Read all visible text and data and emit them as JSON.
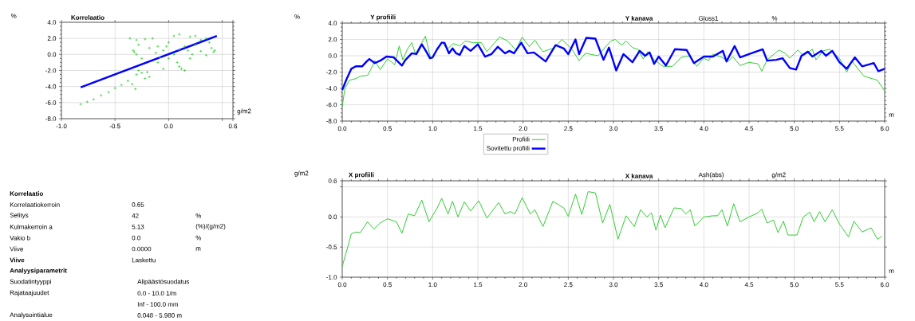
{
  "chart_data": [
    {
      "type": "scatter",
      "title": "Korrelaatio",
      "xlabel": "g/m2",
      "ylabel": "%",
      "grid": true,
      "xlim": [
        -1.0,
        0.6
      ],
      "ylim": [
        -8,
        4
      ],
      "xticks": [
        {
          "value": -1,
          "label": "-1.0"
        },
        -0.5,
        {
          "value": 0,
          "label": "0.0"
        },
        {
          "value": 0.5,
          "label": null
        },
        0.6
      ],
      "yticks": [
        {
          "value": -8,
          "label": "-8.0"
        },
        {
          "value": -6,
          "label": "-6.0"
        },
        {
          "value": -4,
          "label": "-4.0"
        },
        {
          "value": -2,
          "label": "-2.0"
        },
        {
          "value": 0,
          "label": "0.0"
        },
        {
          "value": 2,
          "label": "2.0"
        },
        {
          "value": 4,
          "label": "4.0"
        }
      ],
      "series": [
        {
          "type": "scatter",
          "marker": "cross",
          "color": "#33cc33",
          "x": [
            -0.82,
            -0.76,
            -0.7,
            -0.63,
            -0.56,
            -0.5,
            -0.44,
            -0.38,
            -0.31,
            -0.34,
            -0.3,
            -0.25,
            -0.22,
            -0.18,
            -0.28,
            -0.2,
            -0.36,
            -0.3,
            -0.22,
            -0.15,
            -0.33,
            -0.3,
            -0.32,
            -0.25,
            -0.28,
            0.4,
            0.42,
            0.43,
            0.38,
            0.35,
            0.3,
            0.25,
            0.2,
            0.1,
            0.05,
            0.15,
            0.1,
            0.15,
            0.0,
            -0.05,
            -0.1,
            0.0,
            0.05,
            0.2,
            -0.1,
            -0.05,
            0.08,
            0.12,
            -0.12,
            -0.18,
            0.25,
            0.3,
            0.35,
            -0.08,
            0.18,
            -0.02,
            0.1,
            0.22
          ],
          "values": [
            -6.2,
            -5.9,
            -5.6,
            -5.1,
            -4.7,
            -4.2,
            -3.8,
            -3.3,
            -4.3,
            -3.7,
            -2.5,
            -2.3,
            -3.0,
            -2.8,
            -2.0,
            -2.2,
            2.0,
            1.8,
            1.9,
            2.0,
            0.5,
            0.0,
            0.3,
            -0.5,
            1.2,
            0.8,
            0.3,
            0.5,
            1.5,
            -0.1,
            0.4,
            2.3,
            2.2,
            2.5,
            2.3,
            1.0,
            -1.5,
            -2.0,
            -0.5,
            0.5,
            1.0,
            1.5,
            0.0,
            -0.5,
            -1.0,
            -1.8,
            -1.0,
            -1.8,
            0.2,
            0.8,
            1.2,
            1.8,
            2.0,
            -0.4,
            0.5,
            1.0,
            0.6,
            0.0
          ]
        },
        {
          "type": "line",
          "color": "#0000ff",
          "x": [
            -0.82,
            0.45
          ],
          "values": [
            -4.1,
            2.3
          ]
        }
      ]
    },
    {
      "type": "line",
      "title": "Y profiili",
      "xlabel": "m",
      "ylabel": "%",
      "grid": true,
      "legend": "bottom",
      "annotations": [
        "Y kanava",
        "Gloss1",
        "%"
      ],
      "xlim": [
        0,
        6
      ],
      "ylim": [
        -8,
        4
      ],
      "xticks": [
        {
          "value": 0,
          "label": "0.0"
        },
        0.5,
        {
          "value": 1,
          "label": "1.0"
        },
        1.5,
        {
          "value": 2,
          "label": "2.0"
        },
        2.5,
        {
          "value": 3,
          "label": "3.0"
        },
        3.5,
        {
          "value": 4,
          "label": "4.0"
        },
        4.5,
        {
          "value": 5,
          "label": "5.0"
        },
        5.5,
        {
          "value": 6,
          "label": "6.0"
        }
      ],
      "yticks": [
        {
          "value": -8,
          "label": "-8.0"
        },
        {
          "value": -6,
          "label": "-6.0"
        },
        {
          "value": -4,
          "label": "-4.0"
        },
        {
          "value": -2,
          "label": "-2.0"
        },
        {
          "value": 0,
          "label": "0.0"
        },
        {
          "value": 2,
          "label": "2.0"
        },
        {
          "value": 4,
          "label": "4.0"
        }
      ],
      "series": [
        {
          "name": "Profiili",
          "color": "#33cc33",
          "x": [
            0,
            0.03,
            0.08,
            0.15,
            0.2,
            0.28,
            0.32,
            0.36,
            0.42,
            0.5,
            0.55,
            0.58,
            0.63,
            0.67,
            0.72,
            0.77,
            0.81,
            0.85,
            0.92,
            0.98,
            1.04,
            1.1,
            1.16,
            1.23,
            1.3,
            1.36,
            1.45,
            1.54,
            1.6,
            1.74,
            1.83,
            1.92,
            1.99,
            2.07,
            2.13,
            2.22,
            2.35,
            2.43,
            2.54,
            2.62,
            2.69,
            2.83,
            2.92,
            2.97,
            3.02,
            3.09,
            3.14,
            3.21,
            3.27,
            3.33,
            3.38,
            3.45,
            3.55,
            3.65,
            3.75,
            3.85,
            3.92,
            4.0,
            4.05,
            4.1,
            4.2,
            4.27,
            4.32,
            4.4,
            4.5,
            4.6,
            4.64,
            4.7,
            4.83,
            4.9,
            4.95,
            5.04,
            5.1,
            5.2,
            5.24,
            5.32,
            5.39,
            5.5,
            5.58,
            5.64,
            5.77,
            5.92,
            6.0
          ],
          "values": [
            -6.2,
            -4.0,
            -3.0,
            -2.8,
            -2.5,
            -2.4,
            -1.6,
            -0.6,
            -1.7,
            -0.4,
            -0.8,
            -1.1,
            1.2,
            -0.5,
            0.8,
            1.6,
            0.2,
            null,
            2.4,
            -0.4,
            null,
            1.7,
            0.8,
            1.5,
            1.2,
            1.8,
            1.6,
            1.6,
            0.5,
            2.3,
            1.8,
            0.7,
            2.3,
            1.1,
            1.9,
            0.5,
            1.0,
            2.0,
            0.8,
            -0.6,
            0.3,
            0.0,
            1.2,
            1.8,
            2.0,
            1.3,
            1.8,
            1.0,
            0.8,
            -0.4,
            0.5,
            -0.5,
            -1.3,
            -1.3,
            -0.2,
            0.0,
            -1.3,
            -0.3,
            -0.6,
            0.2,
            -0.2,
            -0.7,
            -0.1,
            -1.2,
            -0.8,
            -1.0,
            -1.9,
            -0.5,
            0.7,
            0.3,
            -0.3,
            0.7,
            0.0,
            0.8,
            -0.5,
            0.6,
            0.8,
            -0.3,
            -2.0,
            -0.7,
            -2.5,
            -3.0,
            -4.3
          ]
        },
        {
          "name": "Sovitettu profiili",
          "color": "#0000ff",
          "x": [
            0,
            0.05,
            0.1,
            0.15,
            0.22,
            0.27,
            0.3,
            0.36,
            0.42,
            0.49,
            0.57,
            0.66,
            0.7,
            0.77,
            0.82,
            0.88,
            0.93,
            0.97,
            1.0,
            1.05,
            1.1,
            1.13,
            1.18,
            1.22,
            1.26,
            1.3,
            1.35,
            1.42,
            1.5,
            1.58,
            1.65,
            1.72,
            1.8,
            1.85,
            1.9,
            1.98,
            2.05,
            2.12,
            2.25,
            2.36,
            2.45,
            2.5,
            2.58,
            2.62,
            2.7,
            2.8,
            2.89,
            2.95,
            3.03,
            3.11,
            3.21,
            3.29,
            3.35,
            3.4,
            3.45,
            3.5,
            3.58,
            3.68,
            3.81,
            3.89,
            4.0,
            4.1,
            4.21,
            4.25,
            4.34,
            4.4,
            4.5,
            4.65,
            4.7,
            4.8,
            4.87,
            4.95,
            5.02,
            5.08,
            5.15,
            5.2,
            5.3,
            5.35,
            5.42,
            5.5,
            5.58,
            5.67,
            5.75,
            5.88,
            5.93,
            6.0
          ],
          "values": [
            -4.2,
            -2.8,
            -1.6,
            -1.3,
            -1.3,
            -0.7,
            -0.4,
            -0.9,
            -0.6,
            -0.1,
            -0.2,
            -1.2,
            -0.5,
            0.3,
            0.2,
            1.4,
            0.5,
            -0.3,
            -0.2,
            0.8,
            1.6,
            1.6,
            0.3,
            0.9,
            0.3,
            0.1,
            1.2,
            0.6,
            1.4,
            -0.1,
            0.2,
            1.1,
            0.3,
            0.6,
            0.3,
            1.6,
            0.3,
            0.4,
            -0.7,
            1.3,
            0.9,
            0.2,
            2.0,
            0.2,
            2.2,
            2.1,
            -0.5,
            1.0,
            -1.8,
            0.2,
            -0.8,
            0.6,
            0.0,
            0.4,
            -1.0,
            -0.1,
            -1.2,
            0.8,
            0.7,
            -0.9,
            -0.1,
            -0.1,
            0.6,
            -0.7,
            1.2,
            -0.2,
            0.2,
            0.8,
            -0.6,
            -0.5,
            -0.3,
            -1.5,
            -1.7,
            0.0,
            0.5,
            -0.1,
            0.6,
            0.0,
            0.6,
            -0.8,
            -1.6,
            -0.2,
            -1.3,
            -0.9,
            -1.9,
            -1.6
          ]
        }
      ]
    },
    {
      "type": "line",
      "title": "X profiili",
      "xlabel": "m",
      "ylabel": "g/m2",
      "grid": true,
      "annotations": [
        "X kanava",
        "Ash(abs)",
        "g/m2"
      ],
      "xlim": [
        0,
        6
      ],
      "ylim": [
        -1.0,
        0.6
      ],
      "xticks": [
        {
          "value": 0,
          "label": "0.0"
        },
        0.5,
        {
          "value": 1,
          "label": "1.0"
        },
        1.5,
        {
          "value": 2,
          "label": "2.0"
        },
        2.5,
        {
          "value": 3,
          "label": "3.0"
        },
        3.5,
        {
          "value": 4,
          "label": "4.0"
        },
        4.5,
        {
          "value": 5,
          "label": "5.0"
        },
        5.5,
        {
          "value": 6,
          "label": "6.0"
        }
      ],
      "yticks": [
        {
          "value": -1,
          "label": "-1.0"
        },
        -0.5,
        {
          "value": 0,
          "label": "0.0"
        },
        {
          "value": 0.5,
          "label": null
        },
        0.6
      ],
      "series": [
        {
          "color": "#33cc33",
          "x": [
            0,
            0.07,
            0.1,
            0.15,
            0.2,
            0.28,
            0.35,
            0.42,
            0.5,
            0.6,
            0.66,
            0.73,
            0.8,
            0.88,
            0.96,
            1.05,
            1.1,
            1.17,
            1.22,
            1.28,
            1.35,
            1.42,
            1.51,
            1.6,
            1.73,
            1.8,
            1.86,
            1.91,
            1.99,
            2.08,
            2.13,
            2.22,
            2.33,
            2.45,
            2.5,
            2.58,
            2.65,
            2.72,
            2.8,
            2.88,
            2.96,
            3.05,
            3.14,
            3.23,
            3.3,
            3.37,
            3.42,
            3.47,
            3.52,
            3.57,
            3.67,
            3.75,
            3.8,
            3.85,
            3.9,
            4.0,
            4.1,
            4.15,
            4.2,
            4.26,
            4.33,
            4.4,
            4.5,
            4.6,
            4.64,
            4.7,
            4.77,
            4.82,
            4.88,
            4.93,
            5.03,
            5.1,
            5.17,
            5.22,
            5.28,
            5.34,
            5.42,
            5.5,
            5.6,
            5.66,
            5.75,
            5.85,
            5.92,
            5.97
          ],
          "values": [
            -0.82,
            -0.45,
            -0.28,
            -0.25,
            -0.26,
            -0.08,
            -0.2,
            -0.1,
            -0.03,
            -0.08,
            -0.27,
            0.05,
            0.02,
            0.28,
            -0.08,
            0.15,
            0.31,
            0.05,
            0.26,
            0.0,
            0.25,
            0.1,
            0.27,
            -0.02,
            0.24,
            0.05,
            0.09,
            0.05,
            0.32,
            0.05,
            0.12,
            -0.16,
            0.26,
            0.15,
            0.01,
            0.38,
            0.04,
            0.42,
            0.4,
            -0.1,
            0.21,
            -0.37,
            0.02,
            -0.16,
            0.12,
            0.0,
            0.07,
            -0.22,
            0.03,
            -0.18,
            0.15,
            0.14,
            0.05,
            0.12,
            -0.15,
            0.0,
            0.02,
            0.02,
            0.12,
            -0.15,
            0.22,
            -0.08,
            0.0,
            0.07,
            0.13,
            -0.1,
            -0.05,
            -0.26,
            -0.07,
            -0.3,
            -0.3,
            0.0,
            0.08,
            -0.08,
            0.09,
            -0.08,
            0.12,
            -0.12,
            -0.33,
            -0.07,
            -0.25,
            -0.18,
            -0.37,
            -0.32
          ]
        }
      ]
    },
    {
      "type": "other",
      "title": "Korrelaatio",
      "annotations": [
        "Korrelaatiokerroin",
        "0.65",
        "Selitys",
        "42",
        "%",
        "Kulmakerroin a",
        "5.13",
        "(%)/(g/m2)",
        "Vakio b",
        "0.0",
        "%",
        "Viive",
        "0.0000",
        "m",
        "Viive",
        "Laskettu",
        "Analyysiparametrit",
        "Suodatintyyppi",
        "Alipäästösuodatus",
        "Rajataajuudet",
        "0.0 - 10.0 1/m",
        "Inf - 100.0 mm",
        "Analysointialue",
        "0.048 - 5.980 m"
      ]
    }
  ]
}
